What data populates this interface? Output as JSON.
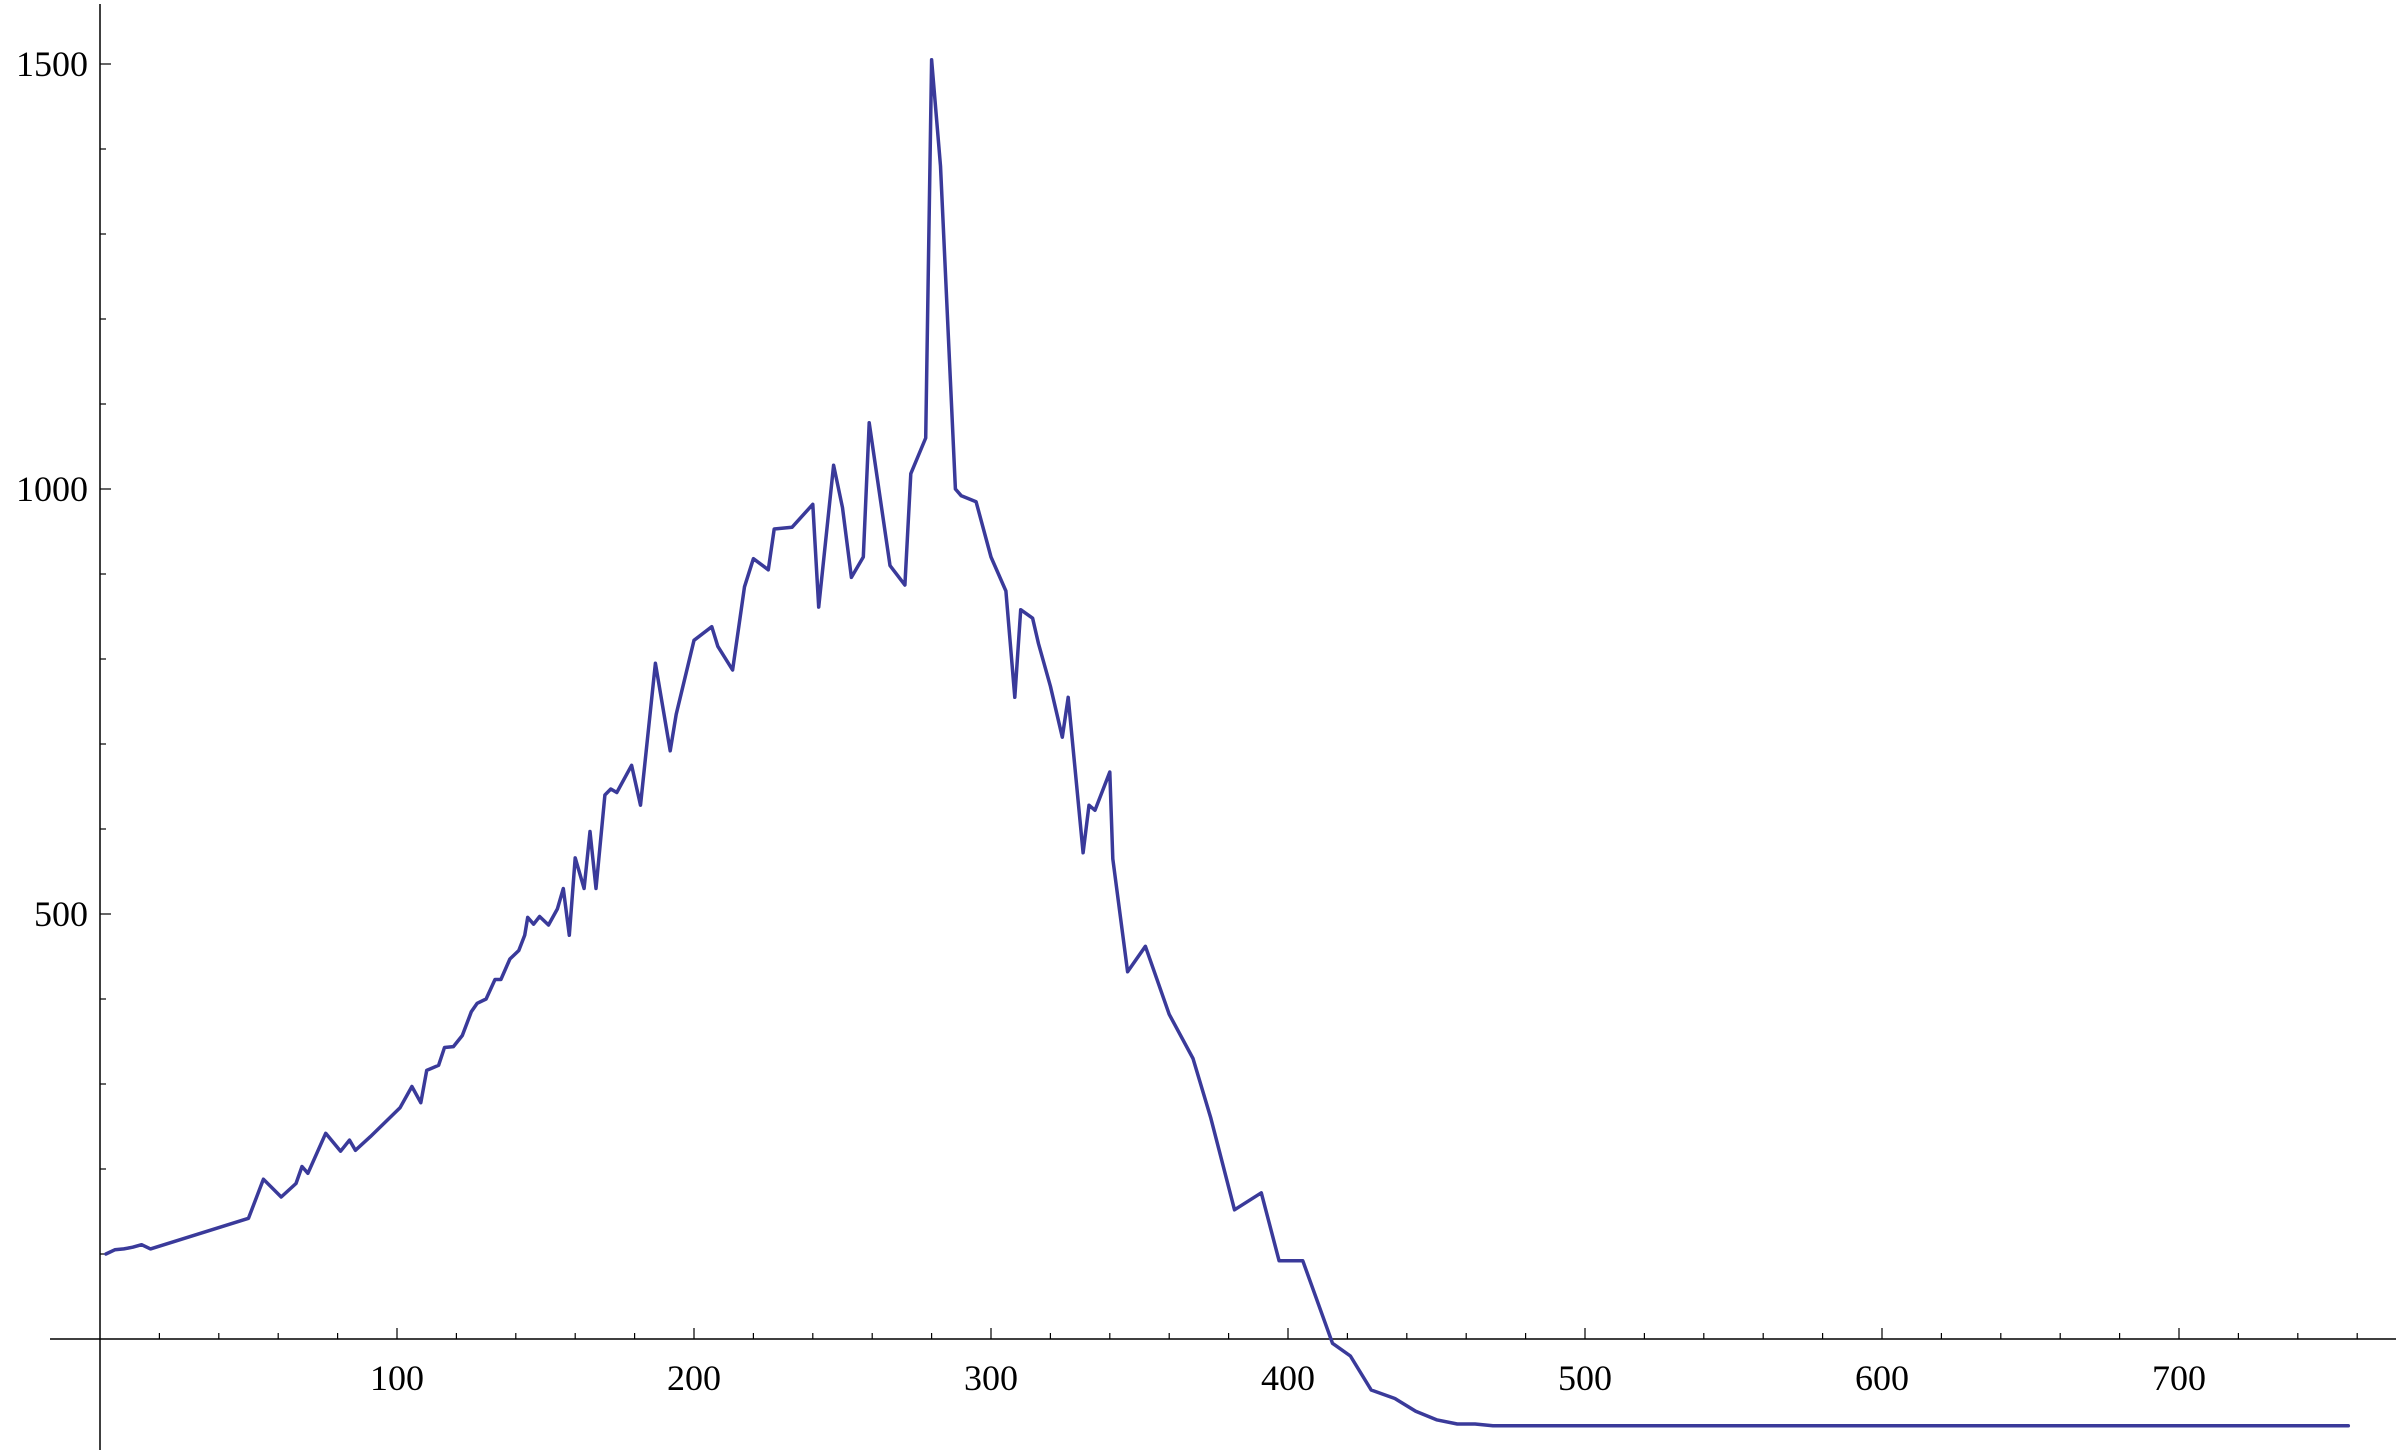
{
  "chart_data": {
    "type": "line",
    "title": "",
    "xlabel": "",
    "ylabel": "",
    "xlim": [
      -15,
      775
    ],
    "ylim": [
      -130,
      1570
    ],
    "x_ticks": [
      100,
      200,
      300,
      400,
      500,
      600,
      700
    ],
    "x_tick_labels": [
      "100",
      "200",
      "300",
      "400",
      "500",
      "600",
      "700"
    ],
    "x_minor_step": 20,
    "y_ticks": [
      500,
      1000,
      1500
    ],
    "y_tick_labels": [
      "500",
      "1000",
      "1500"
    ],
    "y_minor_step": 100,
    "grid": false,
    "legend": "none",
    "series": [
      {
        "color": "#3a3a9a",
        "points": [
          [
            2,
            100
          ],
          [
            5,
            105
          ],
          [
            8,
            106
          ],
          [
            11,
            108
          ],
          [
            14,
            111
          ],
          [
            17,
            106
          ],
          [
            50,
            142
          ],
          [
            55,
            188
          ],
          [
            61,
            167
          ],
          [
            66,
            183
          ],
          [
            68,
            203
          ],
          [
            70,
            195
          ],
          [
            76,
            242
          ],
          [
            81,
            221
          ],
          [
            84,
            234
          ],
          [
            86,
            222
          ],
          [
            91,
            238
          ],
          [
            101,
            272
          ],
          [
            105,
            297
          ],
          [
            108,
            278
          ],
          [
            110,
            316
          ],
          [
            114,
            322
          ],
          [
            116,
            343
          ],
          [
            119,
            344
          ],
          [
            122,
            357
          ],
          [
            125,
            385
          ],
          [
            127,
            395
          ],
          [
            130,
            400
          ],
          [
            133,
            423
          ],
          [
            135,
            423
          ],
          [
            138,
            447
          ],
          [
            141,
            457
          ],
          [
            143,
            475
          ],
          [
            144,
            496
          ],
          [
            146,
            488
          ],
          [
            148,
            497
          ],
          [
            151,
            487
          ],
          [
            154,
            506
          ],
          [
            156,
            530
          ],
          [
            158,
            475
          ],
          [
            160,
            566
          ],
          [
            163,
            530
          ],
          [
            165,
            597
          ],
          [
            167,
            530
          ],
          [
            170,
            640
          ],
          [
            172,
            647
          ],
          [
            174,
            643
          ],
          [
            179,
            675
          ],
          [
            182,
            628
          ],
          [
            187,
            795
          ],
          [
            192,
            692
          ],
          [
            194,
            735
          ],
          [
            200,
            822
          ],
          [
            206,
            838
          ],
          [
            208,
            815
          ],
          [
            213,
            787
          ],
          [
            217,
            885
          ],
          [
            220,
            918
          ],
          [
            225,
            905
          ],
          [
            227,
            953
          ],
          [
            233,
            955
          ],
          [
            240,
            982
          ],
          [
            242,
            861
          ],
          [
            247,
            1028
          ],
          [
            250,
            978
          ],
          [
            253,
            896
          ],
          [
            257,
            920
          ],
          [
            259,
            1078
          ],
          [
            266,
            910
          ],
          [
            271,
            887
          ],
          [
            273,
            1018
          ],
          [
            278,
            1060
          ],
          [
            280,
            1505
          ],
          [
            283,
            1380
          ],
          [
            288,
            1000
          ],
          [
            290,
            992
          ],
          [
            295,
            985
          ],
          [
            300,
            920
          ],
          [
            305,
            880
          ],
          [
            308,
            755
          ],
          [
            310,
            858
          ],
          [
            314,
            848
          ],
          [
            316,
            818
          ],
          [
            320,
            768
          ],
          [
            324,
            708
          ],
          [
            326,
            755
          ],
          [
            331,
            572
          ],
          [
            333,
            628
          ],
          [
            335,
            622
          ],
          [
            340,
            667
          ],
          [
            341,
            565
          ],
          [
            346,
            432
          ],
          [
            352,
            462
          ],
          [
            360,
            382
          ],
          [
            368,
            330
          ],
          [
            374,
            260
          ],
          [
            382,
            152
          ],
          [
            391,
            172
          ],
          [
            397,
            92
          ],
          [
            405,
            92
          ],
          [
            415,
            -5
          ],
          [
            421,
            -20
          ],
          [
            428,
            -60
          ],
          [
            436,
            -70
          ],
          [
            443,
            -85
          ],
          [
            450,
            -95
          ],
          [
            457,
            -100
          ],
          [
            463,
            -100
          ],
          [
            469,
            -102
          ],
          [
            500,
            -102
          ],
          [
            600,
            -102
          ],
          [
            650,
            -102
          ],
          [
            700,
            -102
          ],
          [
            757,
            -102
          ]
        ]
      }
    ]
  }
}
